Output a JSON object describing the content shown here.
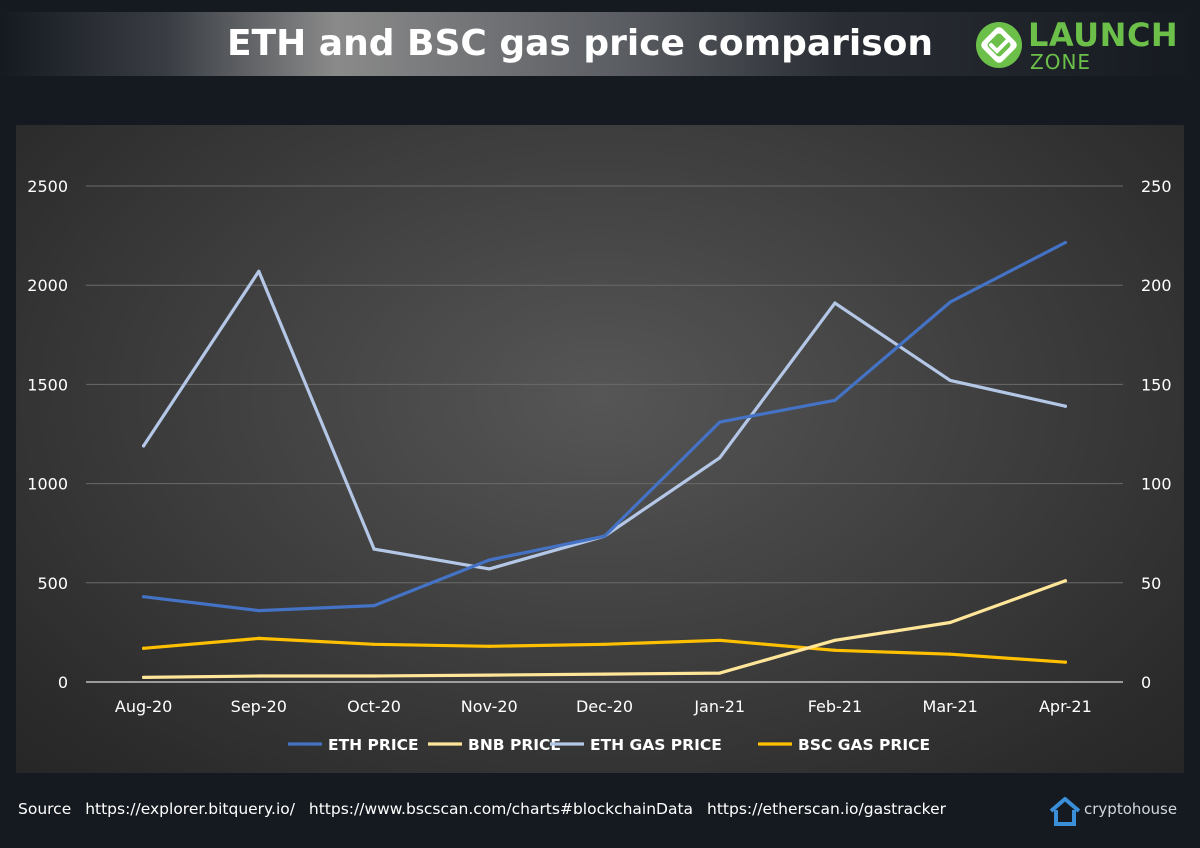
{
  "header": {
    "title": "ETH and BSC gas price comparison",
    "brand_line1": "LAUNCH",
    "brand_line2": "ZONE",
    "brand_color": "#6cc04a"
  },
  "chart_data": {
    "type": "line",
    "title": "",
    "categories": [
      "Aug-20",
      "Sep-20",
      "Oct-20",
      "Nov-20",
      "Dec-20",
      "Jan-21",
      "Feb-21",
      "Mar-21",
      "Apr-21"
    ],
    "y_left": {
      "ylim": [
        0,
        2500
      ],
      "ticks": [
        "0",
        "500",
        "1000",
        "1500",
        "2000",
        "2500"
      ]
    },
    "y_right": {
      "ylim": [
        0,
        250
      ],
      "ticks": [
        "0",
        "50",
        "100",
        "150",
        "200",
        "250"
      ]
    },
    "grid": true,
    "legend_position": "bottom",
    "series": [
      {
        "name": "ETH PRICE",
        "axis": "left",
        "color": "#4472c4",
        "values": [
          430,
          360,
          385,
          615,
          735,
          1310,
          1420,
          1915,
          2215
        ]
      },
      {
        "name": "BNB PRICE",
        "axis": "right",
        "color": "#ffe699",
        "values": [
          2.3,
          3,
          3,
          3.5,
          4,
          4.5,
          21,
          30,
          51
        ]
      },
      {
        "name": "ETH GAS PRICE",
        "axis": "right",
        "color": "#b4c7e7",
        "values": [
          119,
          207,
          67,
          57,
          73.5,
          113,
          191,
          152,
          139
        ]
      },
      {
        "name": "BSC GAS PRICE",
        "axis": "right",
        "color": "#ffc000",
        "values": [
          17,
          22,
          19,
          18,
          19,
          21,
          16,
          14,
          10
        ]
      }
    ]
  },
  "footer": {
    "source_label": "Source",
    "links": [
      "https://explorer.bitquery.io/",
      "https://www.bscscan.com/charts#blockchainData",
      "https://etherscan.io/gastracker"
    ],
    "credit": "cryptohouse"
  }
}
